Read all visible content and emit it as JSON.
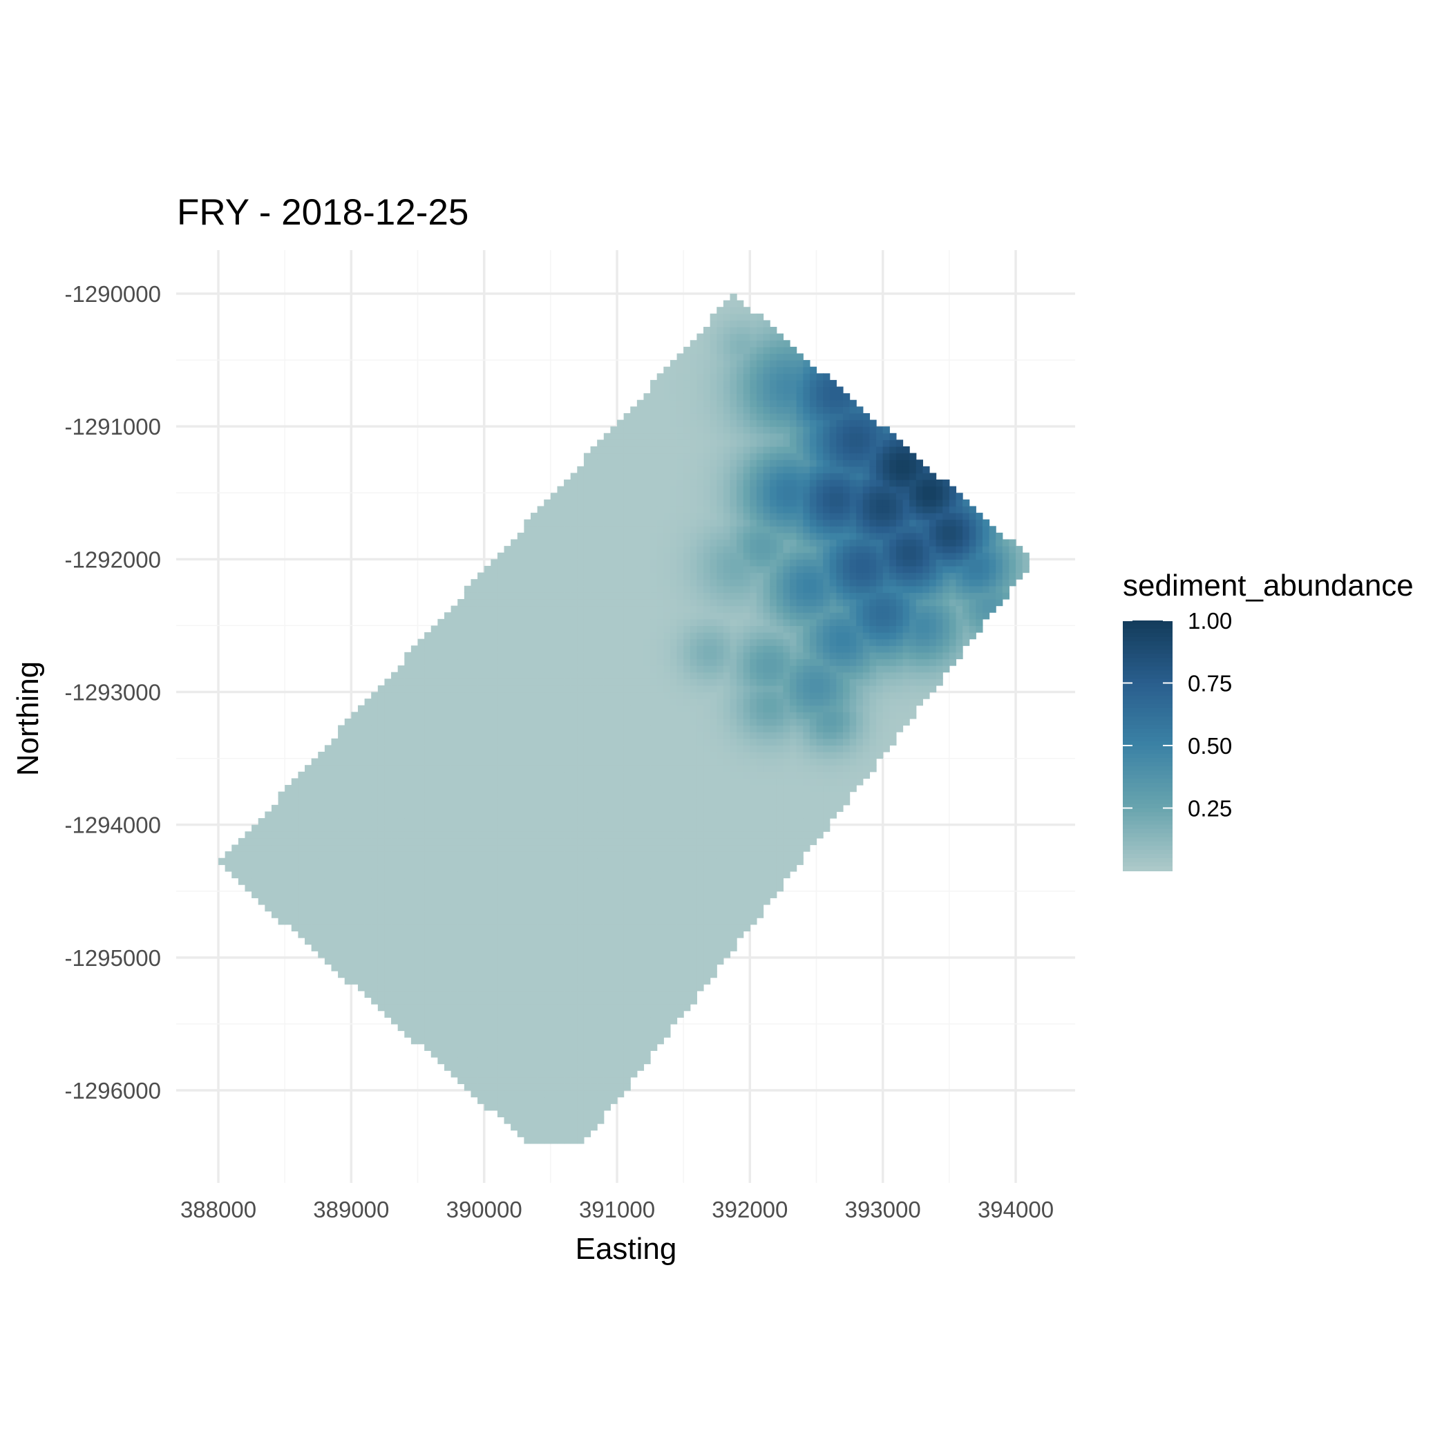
{
  "chart_data": {
    "type": "heatmap",
    "title": "FRY - 2018-12-25",
    "xlabel": "Easting",
    "ylabel": "Northing",
    "xlim": [
      387700,
      394450
    ],
    "ylim": [
      -1296650,
      -1289650
    ],
    "x_ticks": [
      388000,
      389000,
      390000,
      391000,
      392000,
      393000,
      394000
    ],
    "y_ticks": [
      -1290000,
      -1291000,
      -1292000,
      -1293000,
      -1294000,
      -1295000,
      -1296000
    ],
    "x_tick_labels": [
      "388000",
      "389000",
      "390000",
      "391000",
      "392000",
      "393000",
      "394000"
    ],
    "y_tick_labels": [
      "-1290000",
      "-1291000",
      "-1292000",
      "-1293000",
      "-1294000",
      "-1295000",
      "-1296000"
    ],
    "grid": true,
    "background_value": 0.0,
    "domain_polygon": [
      [
        391880,
        -1290000
      ],
      [
        394130,
        -1292010
      ],
      [
        390750,
        -1296400
      ],
      [
        390330,
        -1296400
      ],
      [
        388000,
        -1294300
      ]
    ],
    "hotspots": [
      [
        392300,
        -1290700,
        0.45,
        280
      ],
      [
        392650,
        -1290750,
        0.75,
        300
      ],
      [
        392800,
        -1291100,
        0.8,
        320
      ],
      [
        393150,
        -1291300,
        0.98,
        300
      ],
      [
        393350,
        -1291500,
        0.98,
        270
      ],
      [
        393000,
        -1291600,
        0.9,
        300
      ],
      [
        392650,
        -1291550,
        0.8,
        280
      ],
      [
        392300,
        -1291500,
        0.55,
        260
      ],
      [
        393500,
        -1291800,
        0.9,
        260
      ],
      [
        393200,
        -1291950,
        0.85,
        280
      ],
      [
        392850,
        -1292050,
        0.75,
        280
      ],
      [
        393700,
        -1292050,
        0.55,
        220
      ],
      [
        392450,
        -1292200,
        0.5,
        240
      ],
      [
        393000,
        -1292400,
        0.65,
        260
      ],
      [
        392700,
        -1292600,
        0.5,
        240
      ],
      [
        393300,
        -1292500,
        0.45,
        220
      ],
      [
        392500,
        -1292950,
        0.4,
        230
      ],
      [
        392150,
        -1292800,
        0.3,
        200
      ],
      [
        392150,
        -1293100,
        0.25,
        190
      ],
      [
        391900,
        -1292050,
        0.2,
        220
      ],
      [
        392100,
        -1291900,
        0.3,
        200
      ],
      [
        391700,
        -1292700,
        0.18,
        160
      ],
      [
        393800,
        -1292350,
        0.35,
        200
      ],
      [
        392600,
        -1293200,
        0.3,
        170
      ],
      [
        391950,
        -1290400,
        0.15,
        150
      ]
    ],
    "color_scale": {
      "name": "sediment_abundance",
      "domain": [
        0,
        1
      ],
      "colors": [
        "#acc9c9",
        "#68a4ae",
        "#3b82a5",
        "#2a5f8e",
        "#143d5d"
      ],
      "legend_ticks": [
        0.25,
        0.5,
        0.75,
        1.0
      ],
      "legend_tick_labels": [
        "0.25",
        "0.50",
        "0.75",
        "1.00"
      ]
    }
  }
}
